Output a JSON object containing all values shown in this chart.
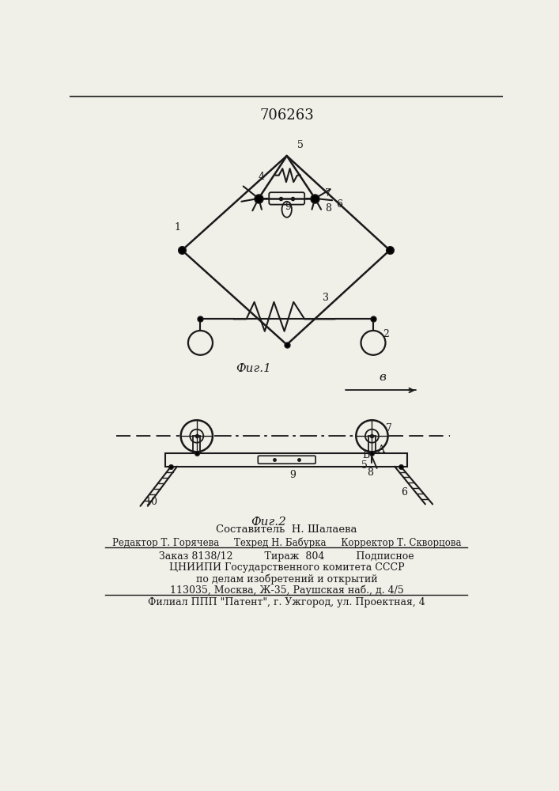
{
  "title": "706263",
  "fig1_caption": "Фиг.1",
  "fig2_caption": "Фиг.2",
  "arrow_label": "в",
  "bg_color": "#f0efe8",
  "line_color": "#1a1a1a",
  "text_color": "#1a1a1a",
  "footer_lines": [
    "Составитель  Н. Шалаева",
    "Редактор Т. Горячева     Техред Н. Бабурка     Корректор Т. Скворцова",
    "Заказ 8138/12          Тираж  804          Подписное",
    "ЦНИИПИ Государственного комитета СССР",
    "по делам изобретений и открытий",
    "113035, Москва, Ж-35, Раушская наб., д. 4/5",
    "Филиал ППП \"Патент\", г. Ужгород, ул. Проектная, 4"
  ]
}
